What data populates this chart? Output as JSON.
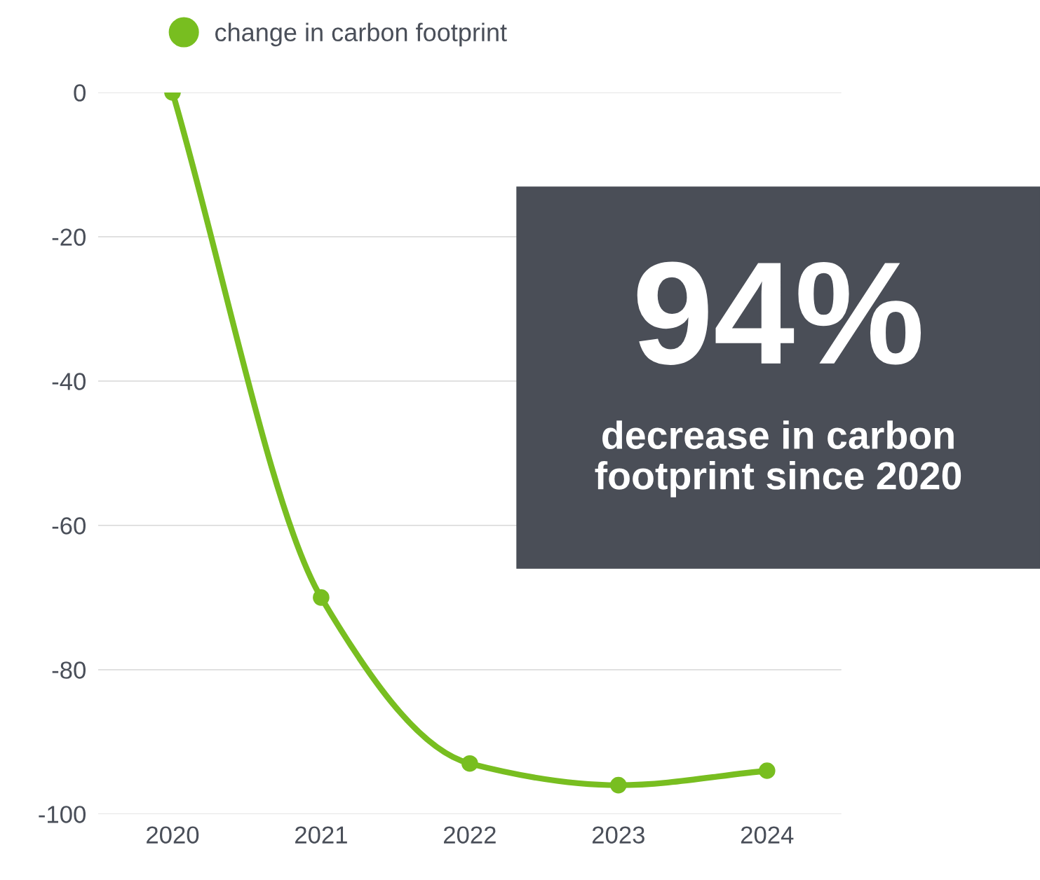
{
  "chart_data": {
    "type": "line",
    "categories": [
      "2020",
      "2021",
      "2022",
      "2023",
      "2024"
    ],
    "series": [
      {
        "name": "change in carbon footprint",
        "color": "#78be20",
        "values": [
          0,
          -70,
          -93,
          -96,
          -94
        ]
      }
    ],
    "ylim": [
      -100,
      0
    ],
    "yticks": [
      -100,
      -80,
      -60,
      -40,
      -20,
      0
    ],
    "grid": "y",
    "legend": "top",
    "marker": "circle",
    "line_style": "solid",
    "annotations": [
      "94%",
      "decrease in carbon\nfootprint since 2020"
    ]
  }
}
